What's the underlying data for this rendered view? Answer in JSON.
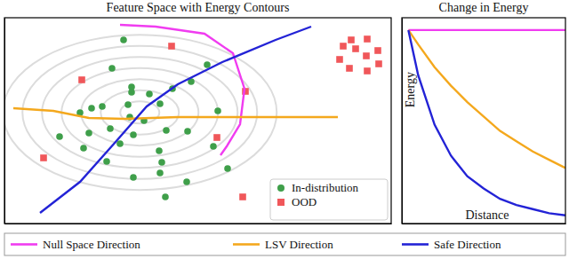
{
  "chart_data": [
    {
      "type": "scatter",
      "title": "Feature Space with Energy Contours",
      "xlim": [
        0,
        435
      ],
      "ylim": [
        0,
        232
      ],
      "tick_labels": false,
      "legend": "lower right",
      "series": [
        {
          "name": "In-distribution",
          "color": "#3f9f4a",
          "marker": "circle",
          "x": [
            134,
            228,
            121,
            210,
            189,
            143,
            143,
            85,
            98,
            110,
            139,
            175,
            240,
            62,
            119,
            141,
            157,
            182,
            206,
            145,
            89,
            130,
            174,
            235,
            115,
            177,
            175,
            251,
            145,
            205,
            181,
            95,
            163
          ],
          "values": [
            207,
            179,
            175,
            160,
            152,
            154,
            148,
            125,
            130,
            132,
            134,
            135,
            127,
            98,
            107,
            120,
            116,
            105,
            104,
            100,
            85,
            90,
            82,
            87,
            70,
            69,
            57,
            62,
            52,
            47,
            30,
            102,
            146
          ]
        },
        {
          "name": "OOD",
          "color": "#f0575a",
          "marker": "square",
          "x": [
            188,
            87,
            271,
            239,
            44,
            268,
            390,
            408,
            395,
            420,
            377,
            407,
            388,
            408,
            421,
            381
          ],
          "values": [
            200,
            162,
            149,
            97,
            74,
            30,
            207,
            208,
            197,
            195,
            185,
            189,
            175,
            172,
            180,
            200
          ]
        },
        {
          "type": "line",
          "color": "#f03cf0",
          "x": [
            130,
            170,
            225,
            257,
            270,
            265,
            250,
            243
          ],
          "values": [
            224,
            222,
            214,
            192,
            152,
            112,
            87,
            77
          ]
        },
        {
          "type": "line",
          "color": "#f4a81d",
          "x": [
            10,
            55,
            95,
            135,
            195,
            295,
            375
          ],
          "values": [
            130,
            127,
            119,
            118,
            120,
            120,
            120
          ]
        },
        {
          "type": "line",
          "color": "#2323d6",
          "x": [
            40,
            85,
            125,
            160,
            195,
            245,
            305,
            345
          ],
          "values": [
            12,
            47,
            92,
            132,
            157,
            182,
            207,
            222
          ]
        }
      ]
    },
    {
      "type": "line",
      "title": "Change in Energy",
      "xlabel": "Distance",
      "ylabel": "Energy",
      "xlim": [
        0,
        1
      ],
      "ylim": [
        0,
        1
      ],
      "tick_labels": false,
      "legend": "bottom",
      "series": [
        {
          "name": "Null Space Direction",
          "color": "#f03cf0",
          "x": [
            0.04,
            0.1,
            0.2,
            0.3,
            0.4,
            0.5,
            0.6,
            0.7,
            0.8,
            0.9,
            1.0
          ],
          "values": [
            0.94,
            0.94,
            0.94,
            0.94,
            0.94,
            0.94,
            0.94,
            0.94,
            0.94,
            0.94,
            0.94
          ]
        },
        {
          "name": "LSV Direction",
          "color": "#f4a81d",
          "x": [
            0.04,
            0.1,
            0.2,
            0.3,
            0.4,
            0.5,
            0.6,
            0.7,
            0.8,
            0.9,
            1.0
          ],
          "values": [
            0.94,
            0.87,
            0.76,
            0.67,
            0.59,
            0.52,
            0.45,
            0.4,
            0.35,
            0.31,
            0.27
          ]
        },
        {
          "name": "Safe Direction",
          "color": "#2323d6",
          "x": [
            0.04,
            0.1,
            0.2,
            0.3,
            0.4,
            0.5,
            0.6,
            0.7,
            0.8,
            0.9,
            1.0
          ],
          "values": [
            0.94,
            0.72,
            0.48,
            0.33,
            0.23,
            0.17,
            0.12,
            0.09,
            0.07,
            0.05,
            0.04
          ]
        }
      ]
    }
  ]
}
